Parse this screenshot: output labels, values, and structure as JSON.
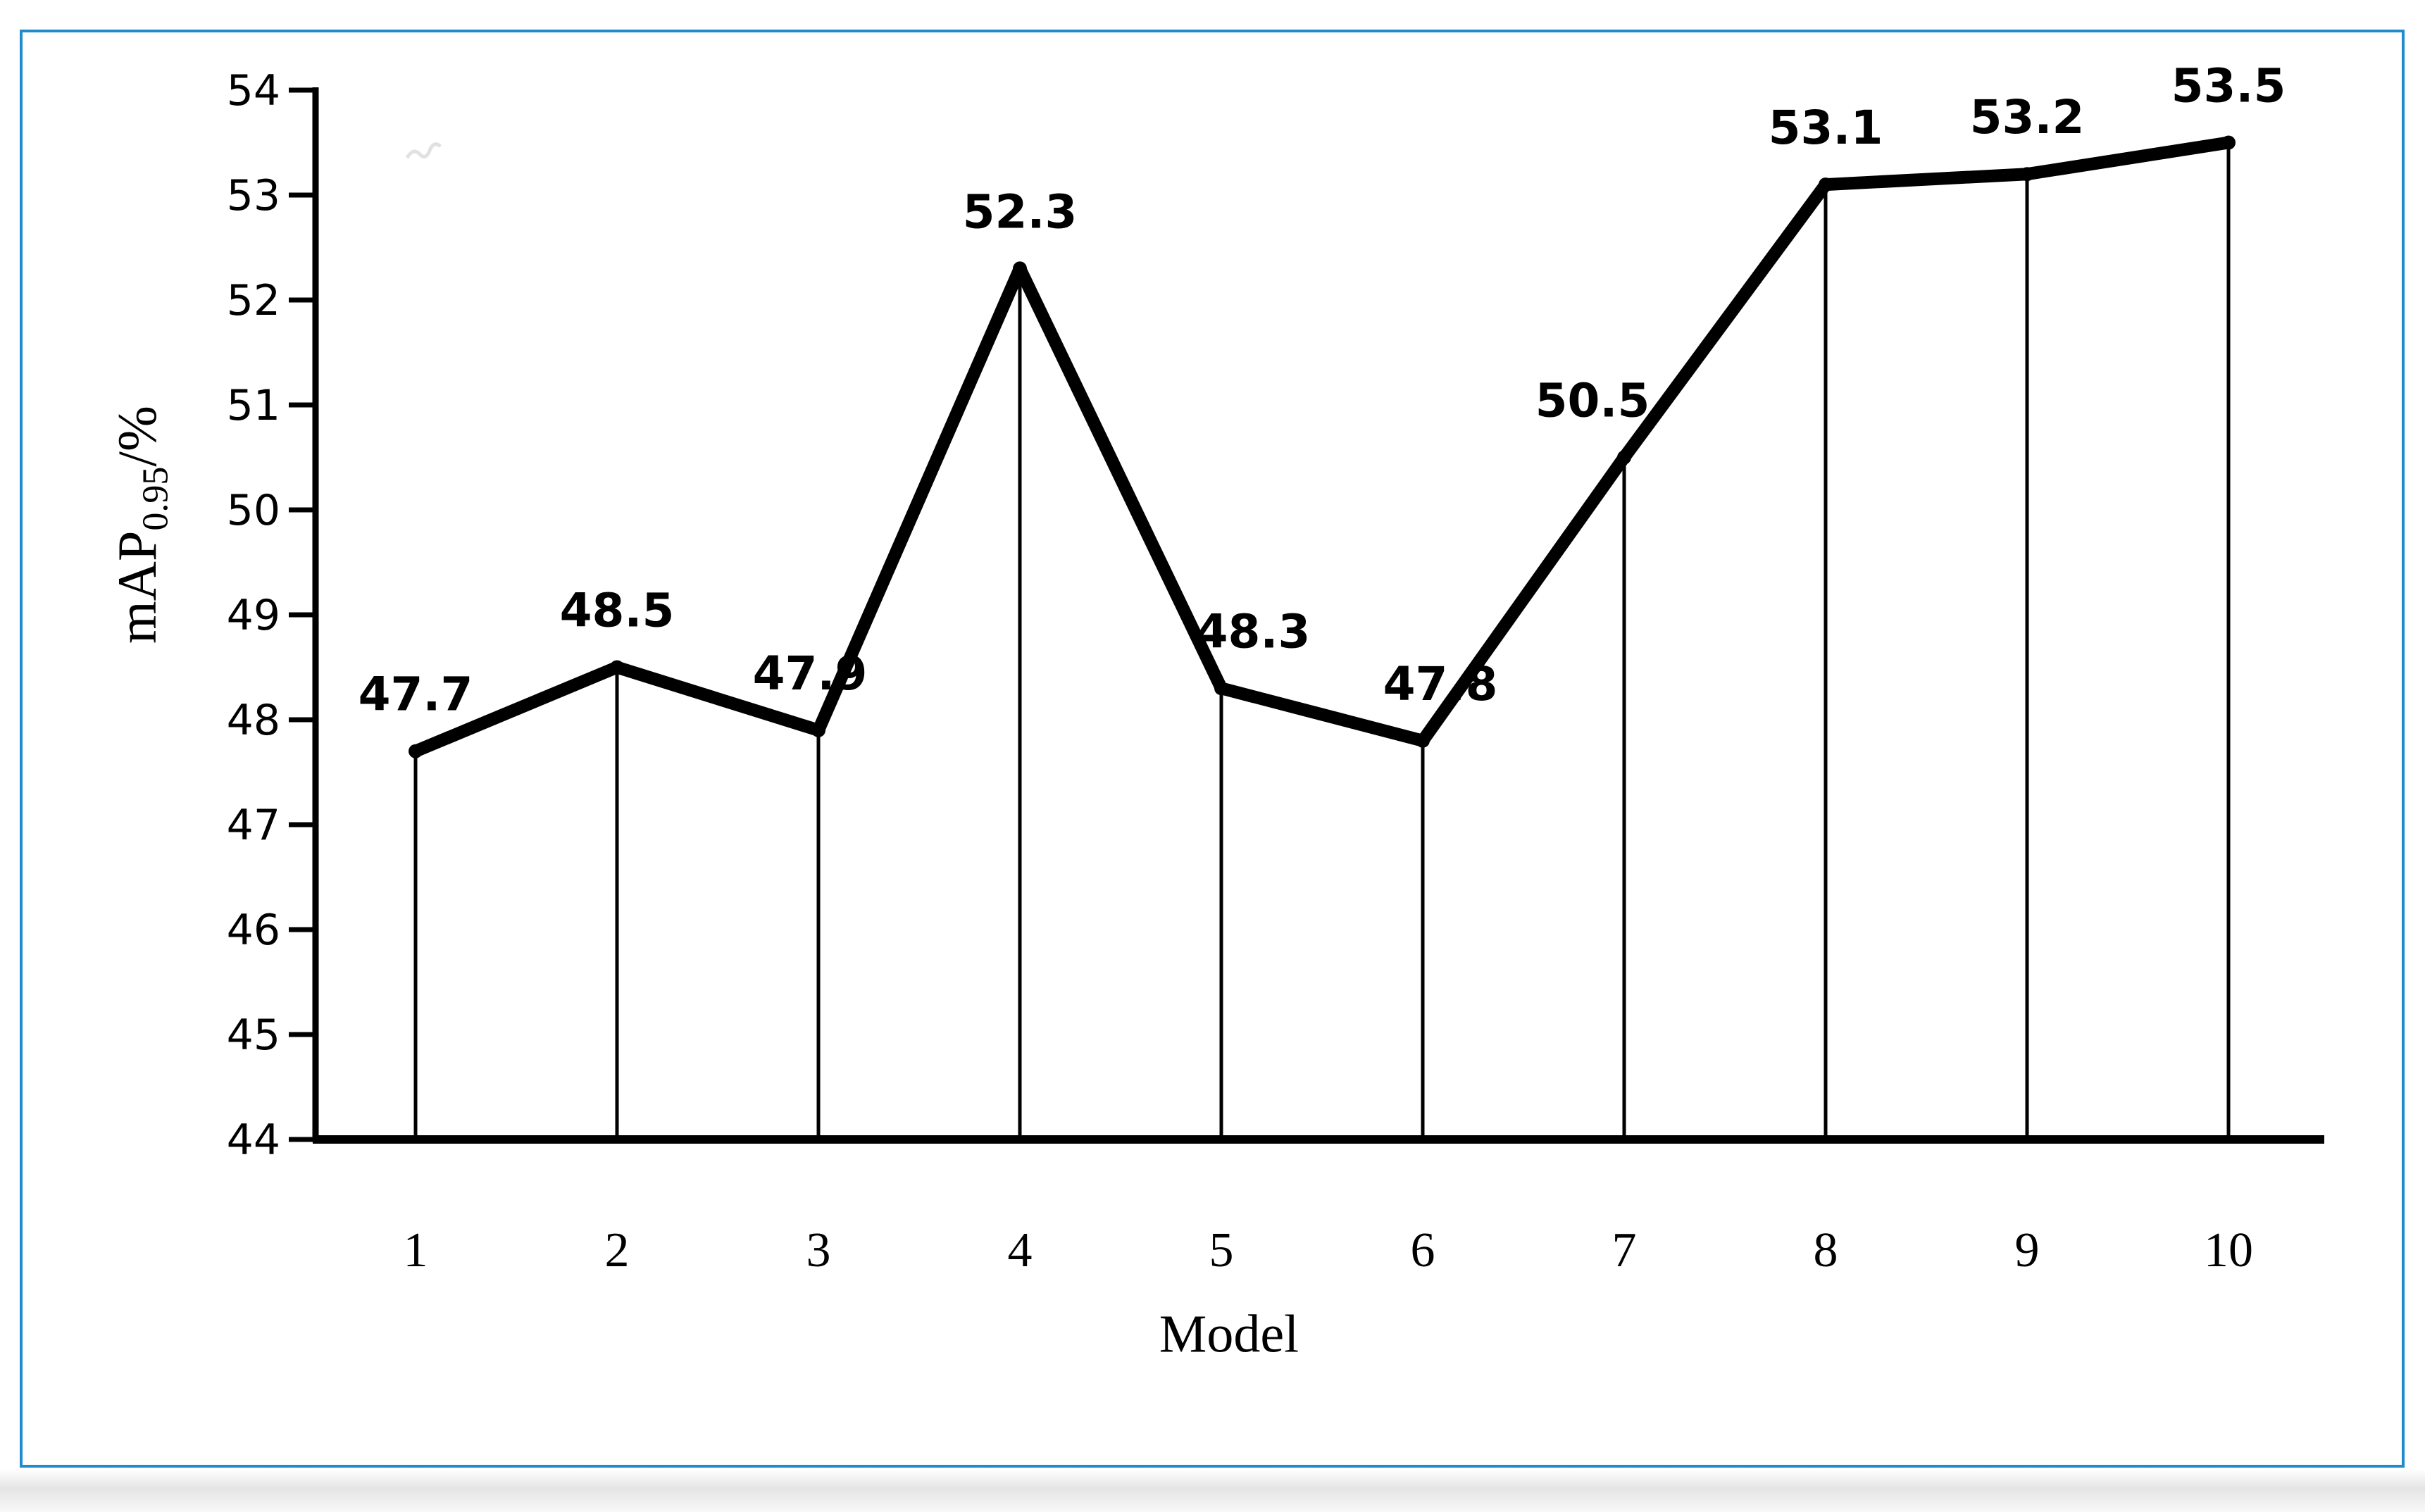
{
  "figure": {
    "frame_color": "#1f8ccd",
    "ink_color": "#000000",
    "artifact_icon": "faint-squiggle-mark"
  },
  "chart_data": {
    "type": "line",
    "title": "",
    "xlabel": "Model",
    "ylabel": {
      "main": "mAP",
      "sub": "0.95",
      "suffix": "/%"
    },
    "categories": [
      "1",
      "2",
      "3",
      "4",
      "5",
      "6",
      "7",
      "8",
      "9",
      "10"
    ],
    "series": [
      {
        "values": [
          47.7,
          48.5,
          47.9,
          52.3,
          48.3,
          47.8,
          50.5,
          53.1,
          53.2,
          53.5
        ]
      }
    ],
    "data_labels": [
      "47.7",
      "48.5",
      "47.9",
      "52.3",
      "48.3",
      "47.8",
      "50.5",
      "53.1",
      "53.2",
      "53.5"
    ],
    "ylim": [
      44,
      54
    ],
    "ytick_step": 1,
    "ytick_labels": [
      "44",
      "45",
      "46",
      "47",
      "48",
      "49",
      "50",
      "51",
      "52",
      "53",
      "54"
    ],
    "grid": false,
    "legend_position": "none",
    "drop_lines": true,
    "marker": "dot",
    "line_color": "#000000",
    "label_color": "#000000"
  }
}
